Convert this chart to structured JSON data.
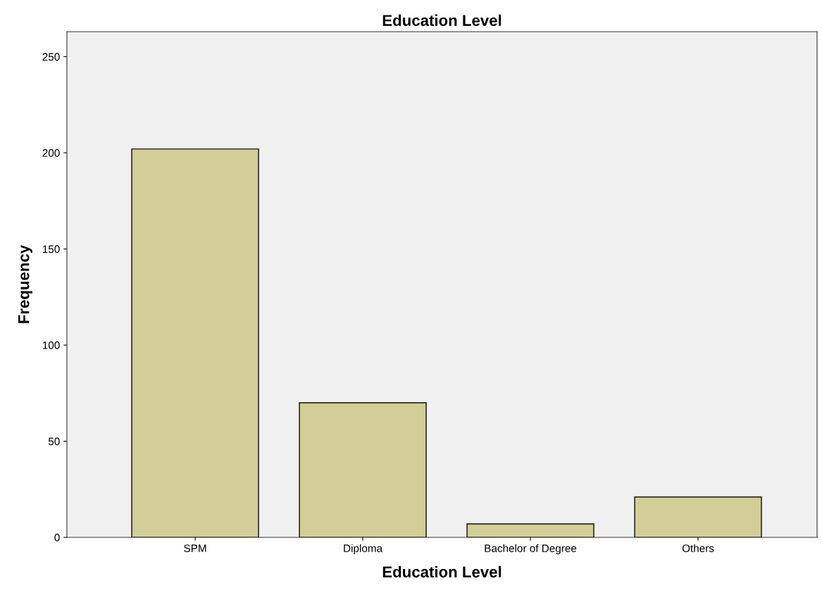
{
  "chart_data": {
    "type": "bar",
    "title": "Education Level",
    "xlabel": "Education Level",
    "ylabel": "Frequency",
    "categories": [
      "SPM",
      "Diploma",
      "Bachelor of Degree",
      "Others"
    ],
    "values": [
      202,
      70,
      7,
      21
    ],
    "color": "#d3ce97",
    "ylim": [
      0,
      263
    ],
    "yticks": [
      0,
      50,
      100,
      150,
      200,
      250
    ],
    "grid": false
  }
}
